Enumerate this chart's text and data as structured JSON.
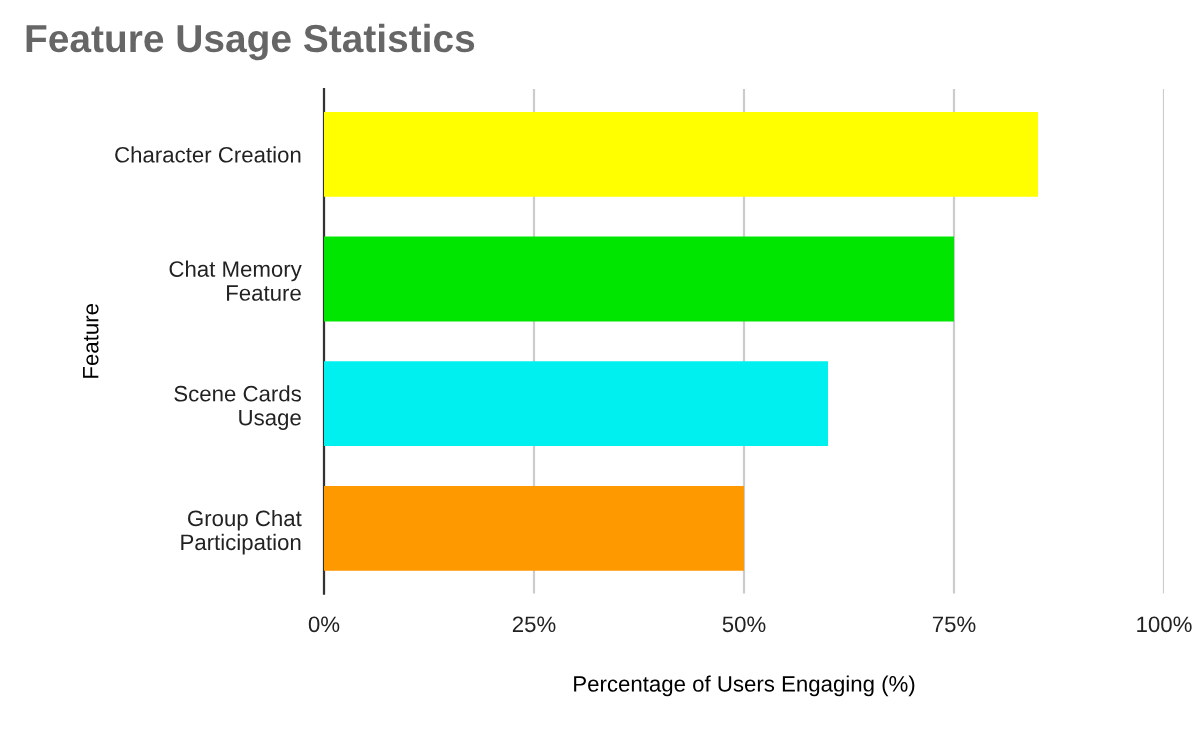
{
  "chart_data": {
    "type": "bar",
    "orientation": "horizontal",
    "title": "Feature Usage Statistics",
    "xlabel": "Percentage of Users Engaging (%)",
    "ylabel": "Feature",
    "categories": [
      "Character Creation",
      "Chat Memory\nFeature",
      "Scene Cards\nUsage",
      "Group Chat\nParticipation"
    ],
    "values": [
      85,
      75,
      60,
      50
    ],
    "colors": [
      "#ffff00",
      "#00e600",
      "#00f0f0",
      "#ff9900"
    ],
    "xlim": [
      0,
      100
    ],
    "xticks": [
      {
        "value": 0,
        "label": "0%"
      },
      {
        "value": 25,
        "label": "25%"
      },
      {
        "value": 50,
        "label": "50%"
      },
      {
        "value": 75,
        "label": "75%"
      },
      {
        "value": 100,
        "label": "100%"
      }
    ],
    "grid": "x"
  }
}
